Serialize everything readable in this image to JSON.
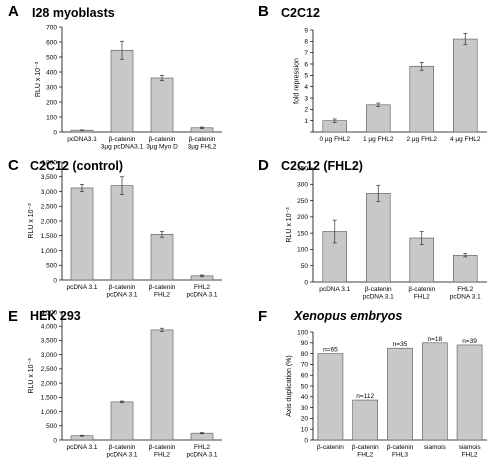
{
  "chart_data": [
    {
      "panel": "A",
      "type": "bar",
      "title": "I28 myoblasts",
      "ylabel": "RLU x 10⁻³",
      "ylim": [
        0,
        700
      ],
      "yticks": [
        0,
        100,
        200,
        300,
        400,
        500,
        600,
        700
      ],
      "ytick_labels": [
        "0",
        "100",
        "200",
        "300",
        "400",
        "500",
        "600",
        "700"
      ],
      "categories": [
        [
          "pcDNA3.1"
        ],
        [
          "β-catenin",
          "3µg pcDNA3.1"
        ],
        [
          "β-catenin",
          "3µg Myo D"
        ],
        [
          "β-catenin",
          "3µg FHL2"
        ]
      ],
      "values": [
        12,
        545,
        360,
        28
      ],
      "errors": [
        2,
        60,
        18,
        5
      ],
      "grid": false
    },
    {
      "panel": "B",
      "type": "bar",
      "title": "C2C12",
      "ylabel": "fold repression",
      "ylim": [
        0,
        9
      ],
      "yticks": [
        0,
        1,
        2,
        3,
        4,
        5,
        6,
        7,
        8,
        9
      ],
      "ytick_labels": [
        "",
        "1",
        "2",
        "3",
        "4",
        "5",
        "6",
        "7",
        "8",
        "9"
      ],
      "categories": [
        [
          "0 µg FHL2"
        ],
        [
          "1 µg FHL2"
        ],
        [
          "2 µg FHL2"
        ],
        [
          "4 µg FHL2"
        ]
      ],
      "values": [
        1.0,
        2.4,
        5.8,
        8.2
      ],
      "errors": [
        0.15,
        0.15,
        0.35,
        0.5
      ],
      "grid": false
    },
    {
      "panel": "C",
      "type": "bar",
      "title": "C2C12 (control)",
      "ylabel": "RLU x 10⁻³",
      "ylim": [
        0,
        4000
      ],
      "yticks": [
        0,
        500,
        1000,
        1500,
        2000,
        2500,
        3000,
        3500,
        4000
      ],
      "ytick_labels": [
        "0",
        "500",
        "1,000",
        "1,500",
        "2,000",
        "2,500",
        "3,000",
        "3,500",
        "4,000"
      ],
      "categories": [
        [
          "pcDNA 3.1"
        ],
        [
          "β-catenin",
          "pcDNA 3.1"
        ],
        [
          "β-catenin",
          "FHL2"
        ],
        [
          "FHL2",
          "pcDNA 3.1"
        ]
      ],
      "values": [
        3120,
        3200,
        1550,
        140
      ],
      "errors": [
        120,
        300,
        100,
        30
      ],
      "grid": false
    },
    {
      "panel": "D",
      "type": "bar",
      "title": "C2C12 (FHL2)",
      "ylabel": "RLU x 10⁻³",
      "ylim": [
        0,
        350
      ],
      "yticks": [
        0,
        50,
        100,
        150,
        200,
        250,
        300,
        350
      ],
      "ytick_labels": [
        "0",
        "50",
        "100",
        "150",
        "200",
        "250",
        "300",
        "350"
      ],
      "categories": [
        [
          "pcDNA 3.1"
        ],
        [
          "β-catenin",
          "pcDNA 3.1"
        ],
        [
          "β-catenin",
          "FHL2"
        ],
        [
          "FHL2",
          "pcDNA 3.1"
        ]
      ],
      "values": [
        155,
        272,
        135,
        82
      ],
      "errors": [
        35,
        25,
        20,
        5
      ],
      "grid": false
    },
    {
      "panel": "E",
      "type": "bar",
      "title": "HEK 293",
      "ylabel": "RLU x 10⁻³",
      "ylim": [
        0,
        4500
      ],
      "yticks": [
        0,
        500,
        1000,
        1500,
        2000,
        2500,
        3000,
        3500,
        4000,
        4500
      ],
      "ytick_labels": [
        "0",
        "500",
        "1,000",
        "1,500",
        "2,000",
        "2,500",
        "3,000",
        "3,500",
        "4,000",
        "4,500"
      ],
      "categories": [
        [
          "pcDNA 3.1"
        ],
        [
          "β-catenin",
          "pcDNA 3.1"
        ],
        [
          "β-catenin",
          "FHL2"
        ],
        [
          "FHL2",
          "pcDNA 3.1"
        ]
      ],
      "values": [
        150,
        1340,
        3870,
        240
      ],
      "errors": [
        15,
        30,
        60,
        20
      ],
      "grid": false
    },
    {
      "panel": "F",
      "type": "bar",
      "title": "Xenopus embryos",
      "ylabel": "Axis duplication (%)",
      "ylim": [
        0,
        100
      ],
      "yticks": [
        0,
        10,
        20,
        30,
        40,
        50,
        60,
        70,
        80,
        90,
        100
      ],
      "ytick_labels": [
        "0",
        "10",
        "20",
        "30",
        "40",
        "50",
        "60",
        "70",
        "80",
        "90",
        "100"
      ],
      "categories": [
        [
          "β-catenin"
        ],
        [
          "β-catenin",
          "FHL2"
        ],
        [
          "β-catenin",
          "FHL3"
        ],
        [
          "siamois"
        ],
        [
          "siamois",
          "FHL2"
        ]
      ],
      "values": [
        80,
        37,
        85,
        90,
        88
      ],
      "data_labels": [
        "n=65",
        "n=112",
        "n=35",
        "n=18",
        "n=39"
      ],
      "grid": false
    }
  ]
}
